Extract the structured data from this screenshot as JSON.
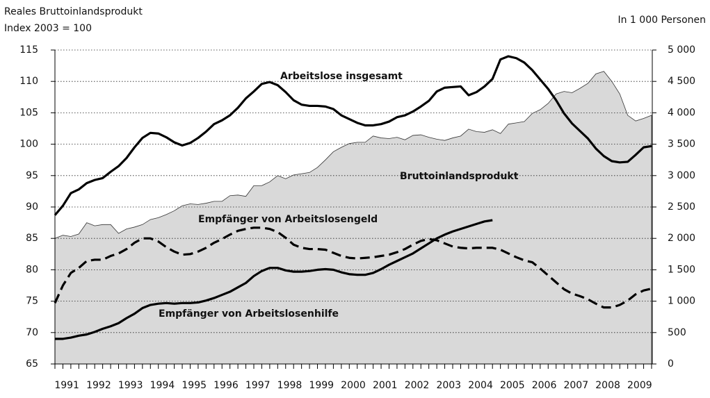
{
  "chart_data": {
    "type": "line",
    "y_label": [
      "Reales Bruttoinlandsprodukt",
      "Index 2003 = 100"
    ],
    "y2_label": "In 1 000 Personen",
    "x": [
      1991,
      1991.25,
      1991.5,
      1991.75,
      1992,
      1992.25,
      1992.5,
      1992.75,
      1993,
      1993.25,
      1993.5,
      1993.75,
      1994,
      1994.25,
      1994.5,
      1994.75,
      1995,
      1995.25,
      1995.5,
      1995.75,
      1996,
      1996.25,
      1996.5,
      1996.75,
      1997,
      1997.25,
      1997.5,
      1997.75,
      1998,
      1998.25,
      1998.5,
      1998.75,
      1999,
      1999.25,
      1999.5,
      1999.75,
      2000,
      2000.25,
      2000.5,
      2000.75,
      2001,
      2001.25,
      2001.5,
      2001.75,
      2002,
      2002.25,
      2002.5,
      2002.75,
      2003,
      2003.25,
      2003.5,
      2003.75,
      2004,
      2004.25,
      2004.5,
      2004.75,
      2005,
      2005.25,
      2005.5,
      2005.75,
      2006,
      2006.25,
      2006.5,
      2006.75,
      2007,
      2007.25,
      2007.5,
      2007.75,
      2008,
      2008.25,
      2008.5,
      2008.75,
      2009,
      2009.25,
      2009.5,
      2009.75
    ],
    "xlim": [
      1991,
      2009.75
    ],
    "xticks": [
      {
        "value": 1991.375,
        "label": "1991"
      },
      {
        "value": 1992.375,
        "label": "1992"
      },
      {
        "value": 1993.375,
        "label": "1993"
      },
      {
        "value": 1994.375,
        "label": "1994"
      },
      {
        "value": 1995.375,
        "label": "1995"
      },
      {
        "value": 1996.375,
        "label": "1996"
      },
      {
        "value": 1997.375,
        "label": "1997"
      },
      {
        "value": 1998.375,
        "label": "1998"
      },
      {
        "value": 1999.375,
        "label": "1999"
      },
      {
        "value": 2000.375,
        "label": "2000"
      },
      {
        "value": 2001.375,
        "label": "2001"
      },
      {
        "value": 2002.375,
        "label": "2002"
      },
      {
        "value": 2003.375,
        "label": "2003"
      },
      {
        "value": 2004.375,
        "label": "2004"
      },
      {
        "value": 2005.375,
        "label": "2005"
      },
      {
        "value": 2006.375,
        "label": "2006"
      },
      {
        "value": 2007.375,
        "label": "2007"
      },
      {
        "value": 2008.375,
        "label": "2008"
      },
      {
        "value": 2009.375,
        "label": "2009"
      }
    ],
    "ylim": [
      65,
      115
    ],
    "yticks": [
      65,
      70,
      75,
      80,
      85,
      90,
      95,
      100,
      105,
      110,
      115
    ],
    "y2lim": [
      0,
      5000
    ],
    "y2ticks": [
      0,
      500,
      {
        "value": 1000,
        "label": "1 000"
      },
      {
        "value": 1500,
        "label": "1 500"
      },
      {
        "value": 2000,
        "label": "2 000"
      },
      {
        "value": 2500,
        "label": "2 500"
      },
      {
        "value": 3000,
        "label": "3 000"
      },
      {
        "value": 3500,
        "label": "3 500"
      },
      {
        "value": 4000,
        "label": "4 000"
      },
      {
        "value": 4500,
        "label": "4 500"
      },
      {
        "value": 5000,
        "label": "5 000"
      }
    ],
    "grid": true,
    "series": [
      {
        "name": "Bruttoinlandsprodukt",
        "color": "#d9d9d9",
        "line_style": "area",
        "values": [
          85.0,
          85.5,
          85.3,
          85.7,
          87.5,
          87.0,
          87.2,
          87.2,
          85.8,
          86.5,
          86.8,
          87.2,
          88.0,
          88.3,
          88.8,
          89.4,
          90.2,
          90.5,
          90.4,
          90.6,
          90.9,
          90.9,
          91.8,
          91.9,
          91.7,
          93.4,
          93.4,
          94.0,
          95.0,
          94.5,
          95.1,
          95.3,
          95.5,
          96.3,
          97.5,
          98.8,
          99.5,
          100.1,
          100.3,
          100.3,
          101.3,
          101.0,
          100.9,
          101.1,
          100.7,
          101.4,
          101.5,
          101.1,
          100.8,
          100.6,
          101.0,
          101.3,
          102.4,
          102.0,
          101.9,
          102.3,
          101.7,
          103.2,
          103.4,
          103.6,
          104.9,
          105.5,
          106.5,
          108.0,
          108.4,
          108.2,
          108.9,
          109.7,
          111.2,
          111.6,
          110.0,
          108.0,
          104.6,
          103.7,
          104.1,
          104.6
        ]
      },
      {
        "name": "Arbeitslose insgesamt",
        "color": "#000000",
        "line_style": "solid",
        "axis": "y2",
        "values": [
          2370,
          2520,
          2720,
          2780,
          2880,
          2930,
          2960,
          3060,
          3150,
          3280,
          3450,
          3600,
          3680,
          3670,
          3610,
          3530,
          3480,
          3520,
          3600,
          3700,
          3820,
          3880,
          3960,
          4080,
          4230,
          4340,
          4460,
          4490,
          4440,
          4330,
          4200,
          4130,
          4110,
          4110,
          4100,
          4060,
          3960,
          3900,
          3840,
          3800,
          3800,
          3820,
          3860,
          3930,
          3960,
          4020,
          4100,
          4190,
          4340,
          4400,
          4410,
          4420,
          4280,
          4330,
          4420,
          4540,
          4850,
          4900,
          4870,
          4800,
          4680,
          4530,
          4380,
          4200,
          3990,
          3830,
          3710,
          3590,
          3430,
          3310,
          3230,
          3210,
          3220,
          3330,
          3450,
          3470
        ]
      },
      {
        "name": "Empfänger von Arbeitslosengeld",
        "color": "#000000",
        "line_style": "dashed",
        "axis": "y2",
        "values": [
          970,
          1250,
          1450,
          1530,
          1640,
          1660,
          1660,
          1720,
          1760,
          1830,
          1930,
          2000,
          2000,
          1950,
          1860,
          1790,
          1740,
          1750,
          1790,
          1850,
          1930,
          1990,
          2060,
          2120,
          2150,
          2170,
          2170,
          2150,
          2100,
          2010,
          1900,
          1850,
          1830,
          1830,
          1820,
          1770,
          1720,
          1690,
          1680,
          1690,
          1700,
          1720,
          1740,
          1780,
          1830,
          1900,
          1960,
          1990,
          1970,
          1920,
          1870,
          1850,
          1840,
          1850,
          1850,
          1850,
          1820,
          1760,
          1700,
          1650,
          1620,
          1520,
          1410,
          1300,
          1190,
          1120,
          1080,
          1030,
          960,
          900,
          900,
          940,
          1010,
          1110,
          1170,
          1200
        ]
      },
      {
        "name": "Empfänger von Arbeitslosenhilfe",
        "color": "#000000",
        "line_style": "solid",
        "axis": "y2",
        "values": [
          400,
          400,
          420,
          450,
          470,
          510,
          560,
          600,
          650,
          730,
          800,
          890,
          940,
          960,
          970,
          960,
          970,
          970,
          980,
          1010,
          1050,
          1100,
          1150,
          1220,
          1290,
          1400,
          1480,
          1530,
          1530,
          1490,
          1470,
          1470,
          1480,
          1500,
          1510,
          1500,
          1460,
          1430,
          1420,
          1420,
          1450,
          1510,
          1580,
          1640,
          1700,
          1760,
          1840,
          1920,
          2000,
          2060,
          2110,
          2150,
          2190,
          2230,
          2270,
          2290,
          null,
          null,
          null,
          null,
          null,
          null,
          null,
          null,
          null,
          null,
          null,
          null,
          null,
          null,
          null,
          null,
          null,
          null,
          null,
          null
        ]
      }
    ]
  }
}
